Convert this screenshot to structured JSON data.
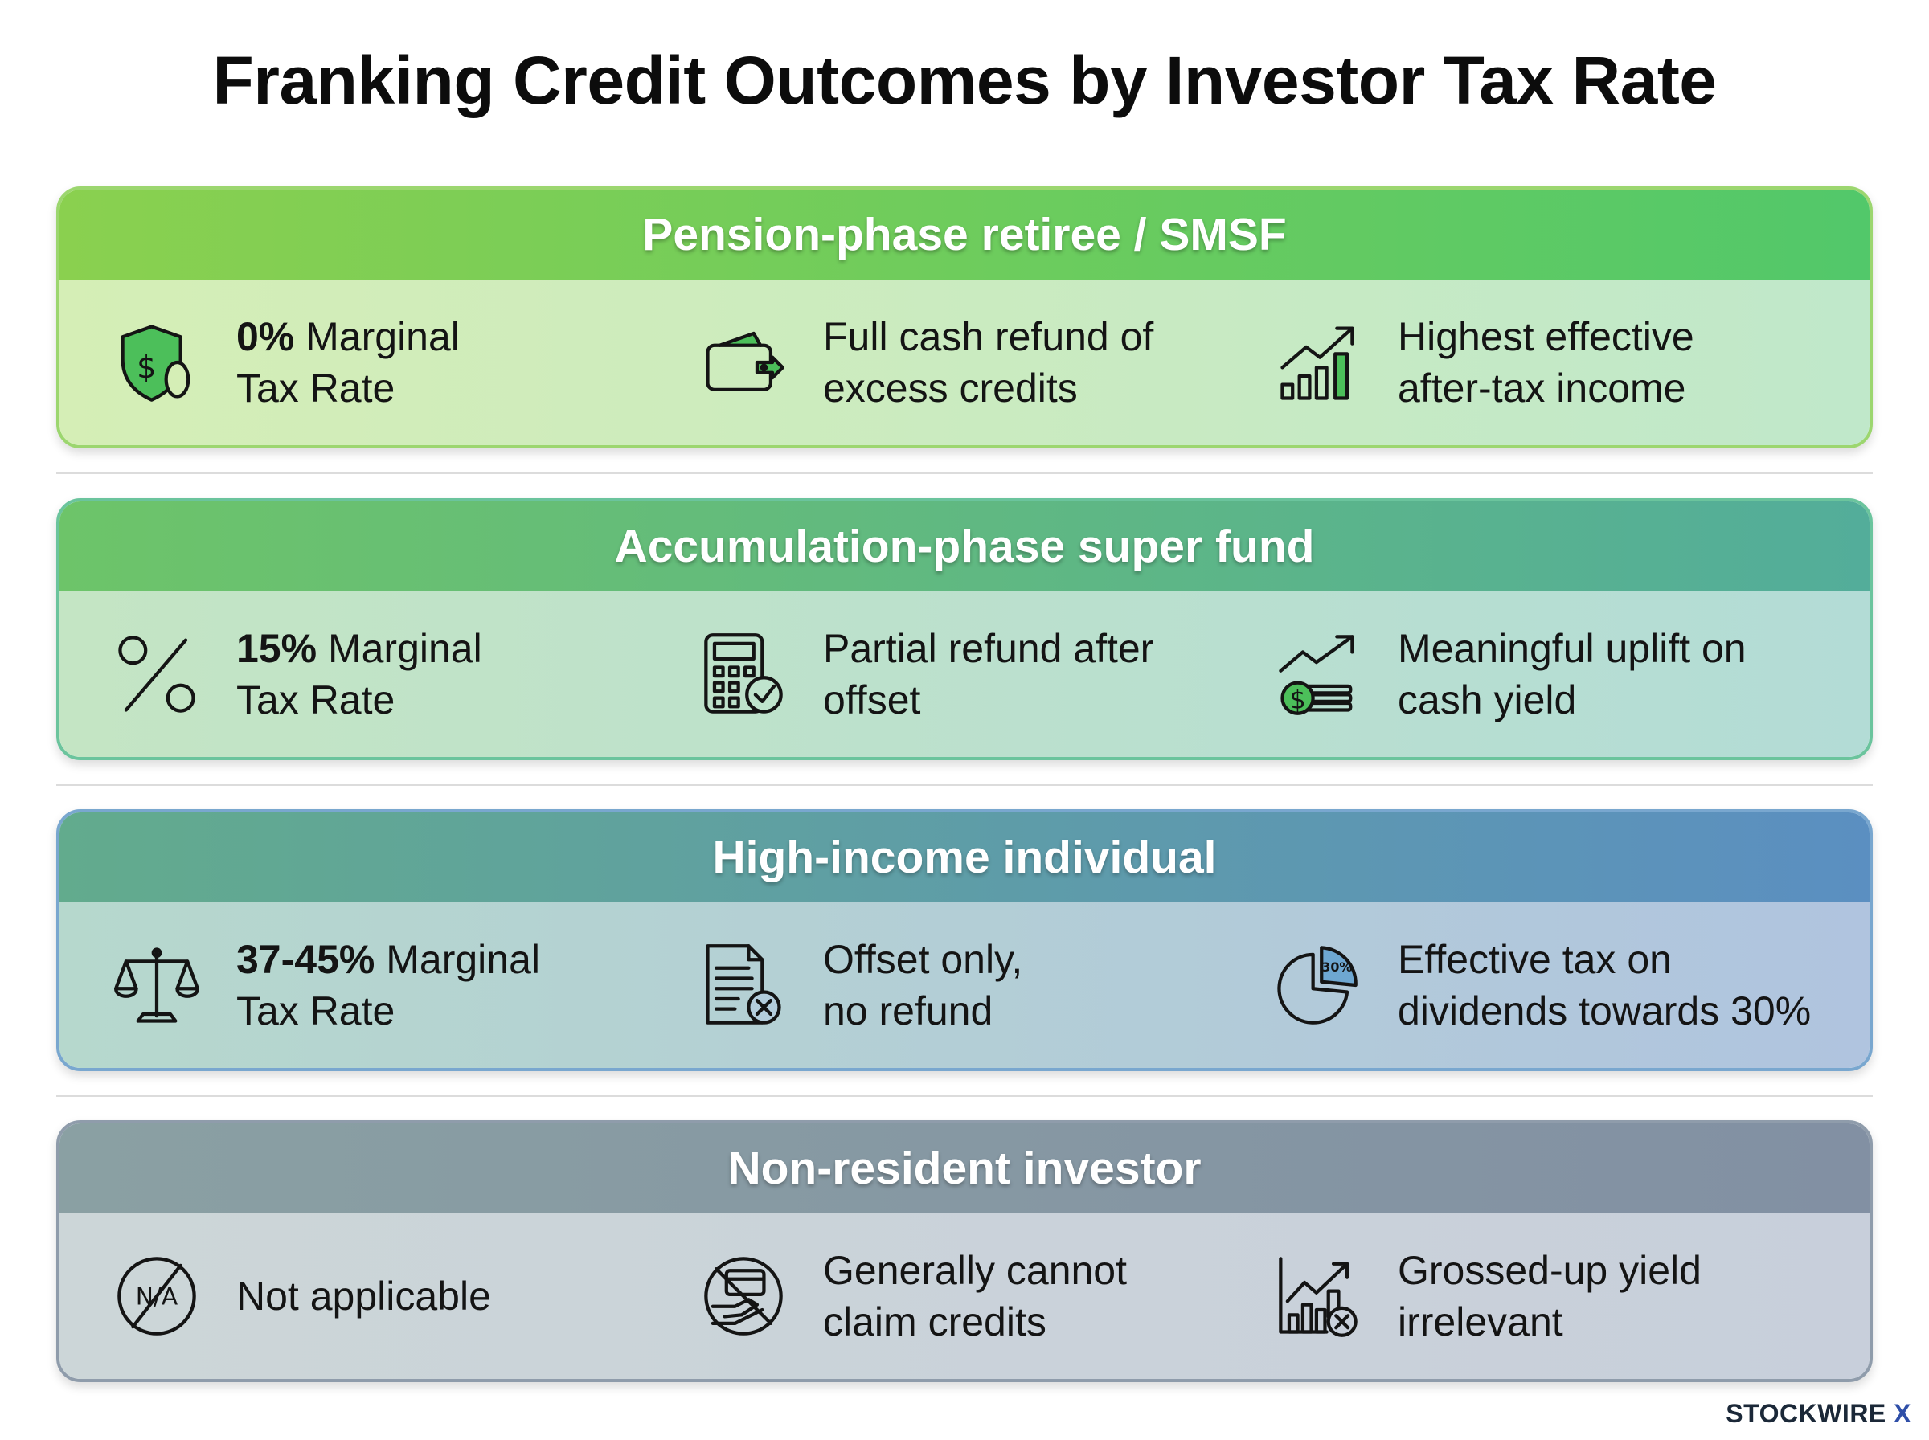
{
  "title": "Franking Credit Outcomes by Investor Tax Rate",
  "colors": {
    "pension": "#6ccd5e",
    "accumulation": "#5fb88a",
    "high_income": "#5e9dad",
    "non_resident": "#8698a4"
  },
  "sections": [
    {
      "heading": "Pension-phase retiree / SMSF",
      "items": [
        {
          "icon": "shield-dollar-zero-icon",
          "bold": "0%",
          "rest": " Marginal",
          "line2": "Tax Rate"
        },
        {
          "icon": "wallet-arrow-icon",
          "line1": "Full cash refund of",
          "line2": "excess credits"
        },
        {
          "icon": "growth-chart-icon",
          "line1": "Highest effective",
          "line2": "after-tax income"
        }
      ]
    },
    {
      "heading": "Accumulation-phase super fund",
      "items": [
        {
          "icon": "percent-icon",
          "bold": "15%",
          "rest": " Marginal",
          "line2": "Tax Rate"
        },
        {
          "icon": "calculator-check-icon",
          "line1": "Partial refund after",
          "line2": "offset"
        },
        {
          "icon": "trend-coins-icon",
          "line1": "Meaningful uplift on",
          "line2": "cash yield"
        }
      ]
    },
    {
      "heading": "High-income individual",
      "items": [
        {
          "icon": "scales-icon",
          "bold": "37-45%",
          "rest": " Marginal",
          "line2": "Tax Rate"
        },
        {
          "icon": "document-x-icon",
          "line1": "Offset only,",
          "line2": "no refund"
        },
        {
          "icon": "pie-30-icon",
          "pie_label": "30%",
          "line1": "Effective tax on",
          "line2": "dividends towards 30%"
        }
      ]
    },
    {
      "heading": "Non-resident investor",
      "items": [
        {
          "icon": "na-circle-icon",
          "na_label": "N/A",
          "line1": "Not applicable"
        },
        {
          "icon": "no-credit-card-icon",
          "line1": "Generally cannot",
          "line2": "claim credits"
        },
        {
          "icon": "chart-x-icon",
          "line1": "Grossed-up yield",
          "line2": "irrelevant"
        }
      ]
    }
  ],
  "brand": {
    "name": "STOCKWIRE",
    "mark": "X"
  }
}
